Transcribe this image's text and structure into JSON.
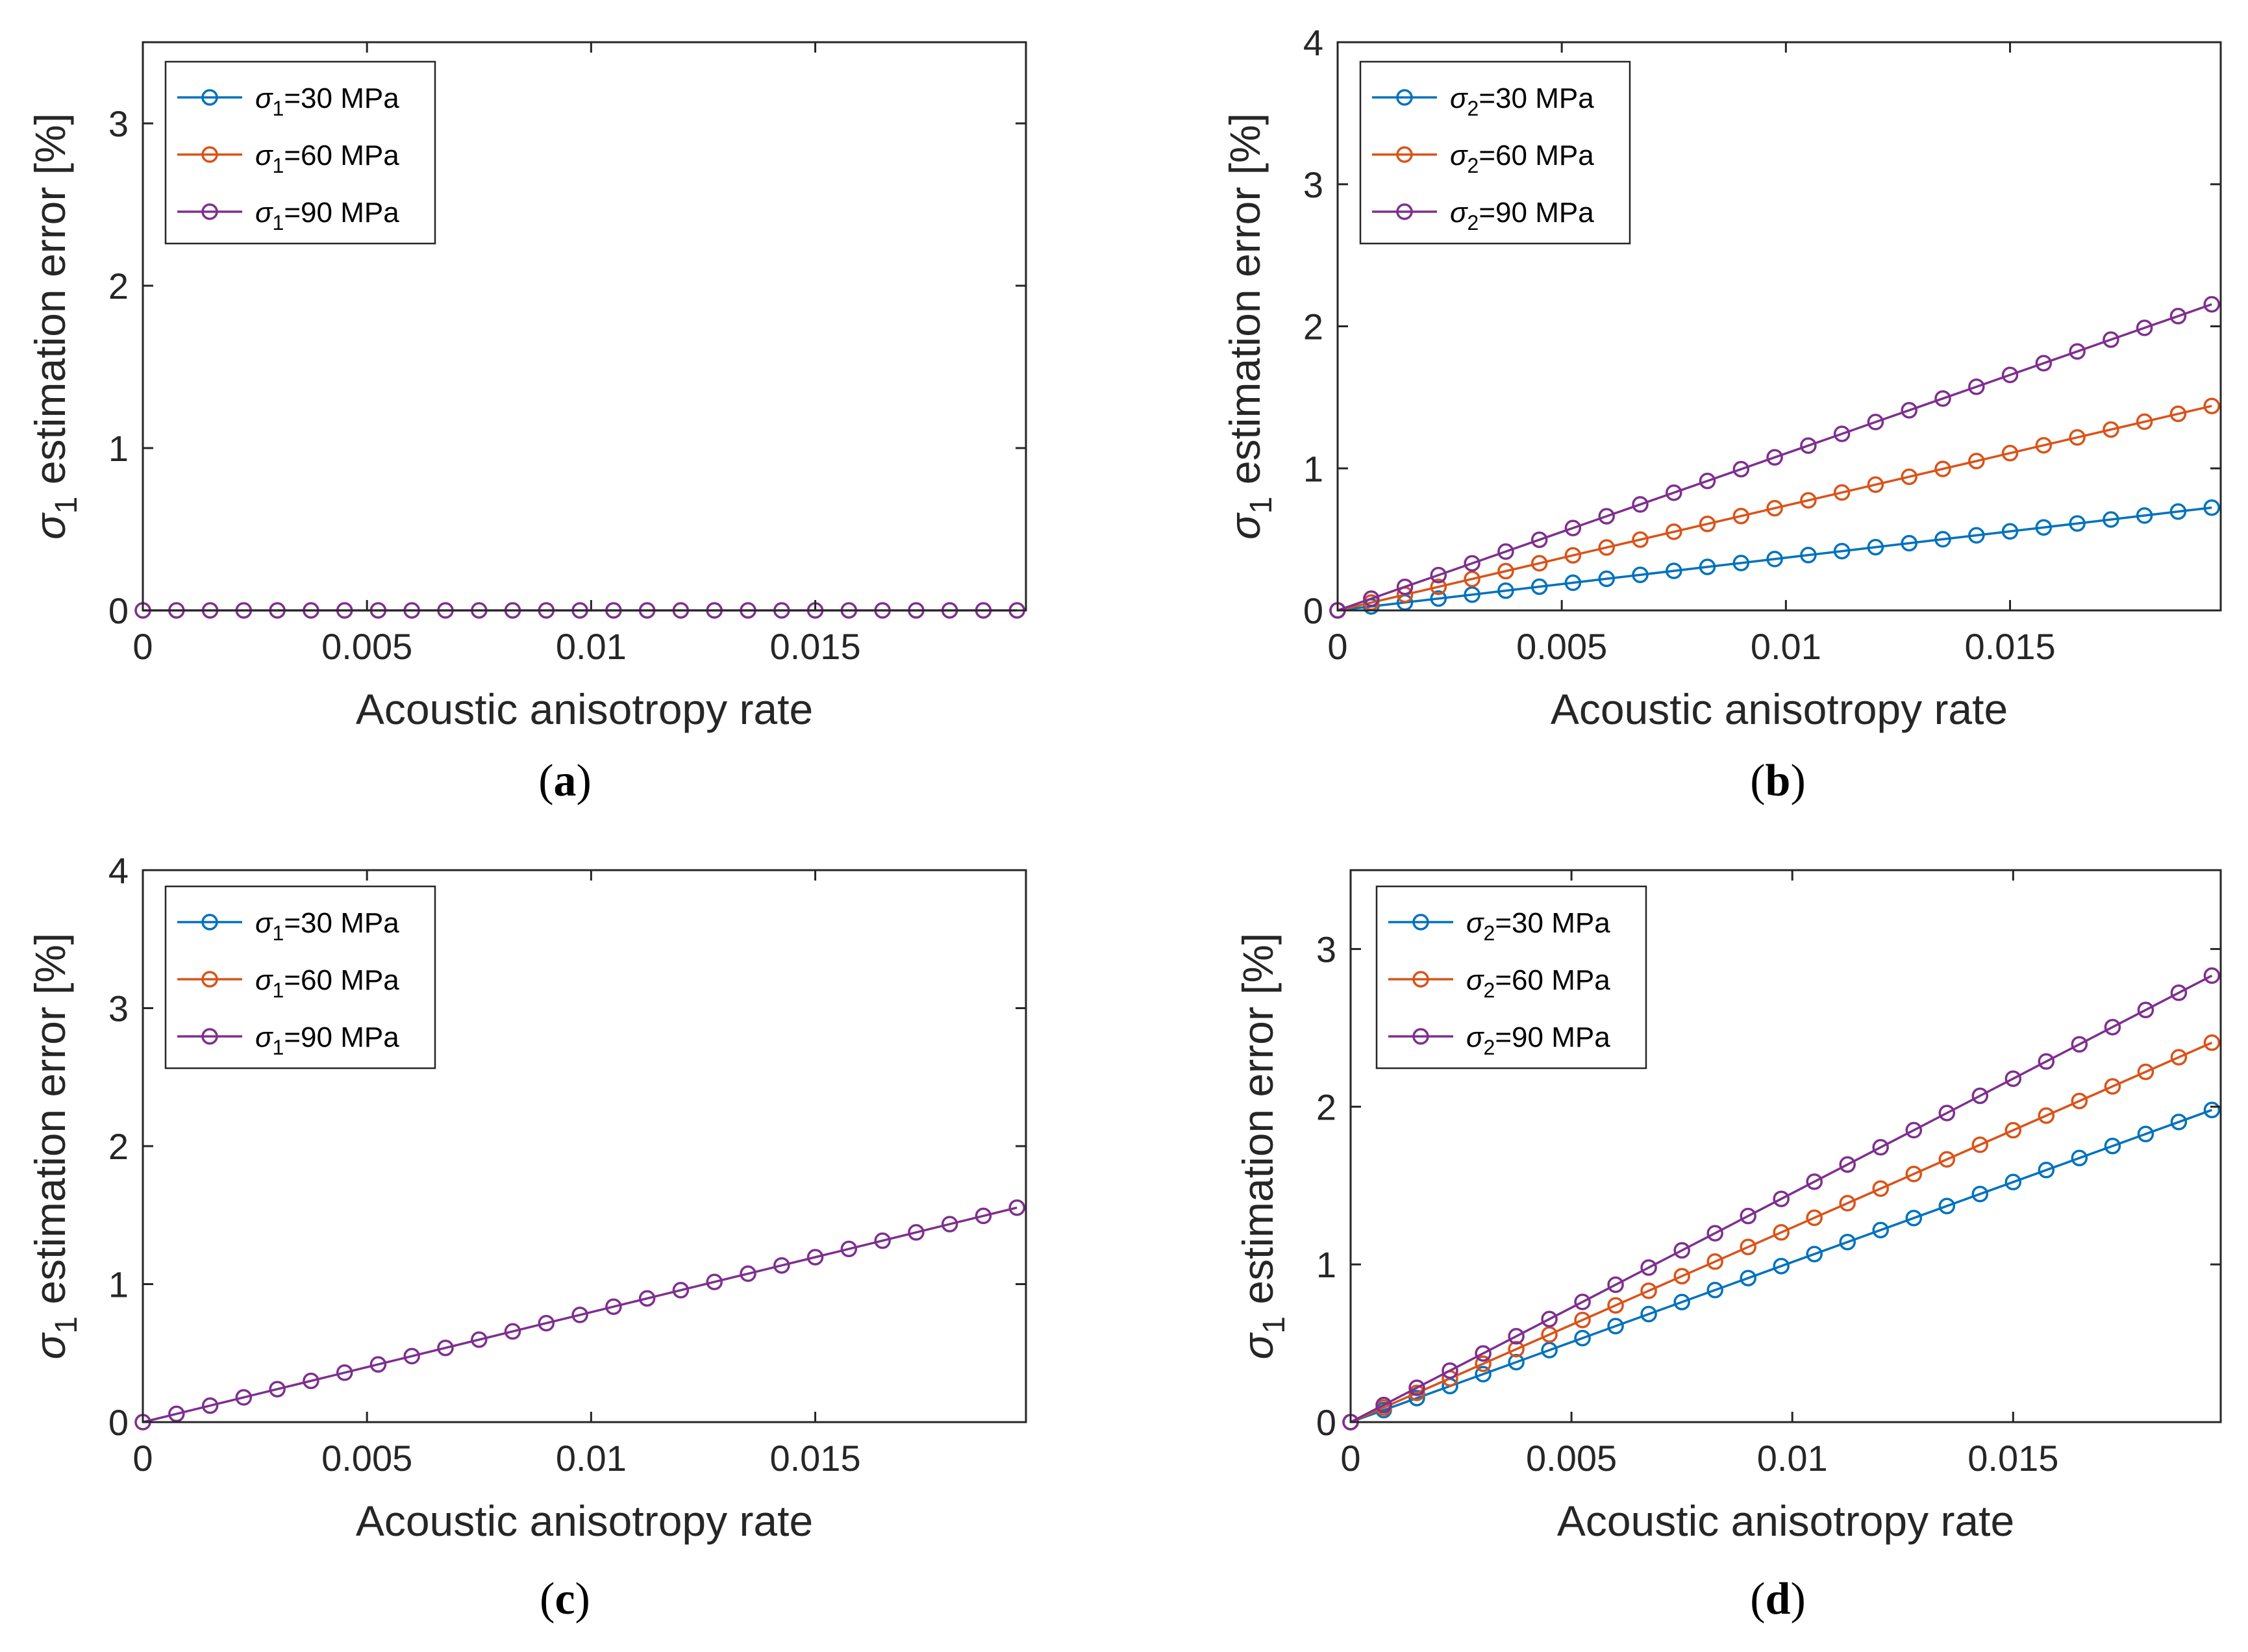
{
  "figure": {
    "panel_labels": [
      "a",
      "b",
      "c",
      "d"
    ]
  },
  "chart_data": [
    {
      "type": "line",
      "panel": "a",
      "xlabel": "Acoustic anisotropy rate",
      "ylabel_symbol": "σ",
      "ylabel_sub": "1",
      "ylabel_text": "estimation error [%]",
      "xlim": [
        0,
        0.0197
      ],
      "ylim": [
        0,
        3.5
      ],
      "xticks": [
        0,
        0.005,
        0.01,
        0.015
      ],
      "xtick_labels": [
        "0",
        "0.005",
        "0.01",
        "0.015"
      ],
      "yticks": [
        0,
        1,
        2,
        3
      ],
      "ytick_labels": [
        "0",
        "1",
        "2",
        "3"
      ],
      "x_start": 0,
      "x_step": 0.00075,
      "n_points": 27,
      "series": [
        {
          "name": "σ1=30 MPa",
          "sym": "σ",
          "sub": "1",
          "label_rest": "=30 MPa",
          "color": "#0072BD",
          "slope": 0,
          "visible": false
        },
        {
          "name": "σ1=60 MPa",
          "sym": "σ",
          "sub": "1",
          "label_rest": "=60 MPa",
          "color": "#D95319",
          "slope": 0,
          "visible": false
        },
        {
          "name": "σ1=90 MPa",
          "sym": "σ",
          "sub": "1",
          "label_rest": "=90 MPa",
          "color": "#7E2F8E",
          "slope": 0,
          "visible": true
        }
      ]
    },
    {
      "type": "line",
      "panel": "b",
      "xlabel": "Acoustic anisotropy rate",
      "ylabel_symbol": "σ",
      "ylabel_sub": "1",
      "ylabel_text": "estimation error [%]",
      "xlim": [
        0,
        0.0197
      ],
      "ylim": [
        0,
        4
      ],
      "xticks": [
        0,
        0.005,
        0.01,
        0.015
      ],
      "xtick_labels": [
        "0",
        "0.005",
        "0.01",
        "0.015"
      ],
      "yticks": [
        0,
        1,
        2,
        3,
        4
      ],
      "ytick_labels": [
        "0",
        "1",
        "2",
        "3",
        "4"
      ],
      "x_start": 0,
      "x_step": 0.00075,
      "n_points": 27,
      "series": [
        {
          "name": "σ2=30 MPa",
          "sym": "σ",
          "sub": "2",
          "label_rest": "=30 MPa",
          "color": "#0072BD",
          "slope": 37.1,
          "visible": true
        },
        {
          "name": "σ2=60 MPa",
          "sym": "σ",
          "sub": "2",
          "label_rest": "=60 MPa",
          "color": "#D95319",
          "slope": 73.8,
          "visible": true
        },
        {
          "name": "σ2=90 MPa",
          "sym": "σ",
          "sub": "2",
          "label_rest": "=90 MPa",
          "color": "#7E2F8E",
          "slope": 110.5,
          "visible": true
        }
      ]
    },
    {
      "type": "line",
      "panel": "c",
      "xlabel": "Acoustic anisotropy rate",
      "ylabel_symbol": "σ",
      "ylabel_sub": "1",
      "ylabel_text": "estimation error [%]",
      "xlim": [
        0,
        0.0197
      ],
      "ylim": [
        0,
        4
      ],
      "xticks": [
        0,
        0.005,
        0.01,
        0.015
      ],
      "xtick_labels": [
        "0",
        "0.005",
        "0.01",
        "0.015"
      ],
      "yticks": [
        0,
        1,
        2,
        3,
        4
      ],
      "ytick_labels": [
        "0",
        "1",
        "2",
        "3",
        "4"
      ],
      "x_start": 0,
      "x_step": 0.00075,
      "n_points": 27,
      "series": [
        {
          "name": "σ1=30 MPa",
          "sym": "σ",
          "sub": "1",
          "label_rest": "=30 MPa",
          "color": "#0072BD",
          "slope": 79.7,
          "visible": false
        },
        {
          "name": "σ1=60 MPa",
          "sym": "σ",
          "sub": "1",
          "label_rest": "=60 MPa",
          "color": "#D95319",
          "slope": 79.7,
          "visible": false
        },
        {
          "name": "σ1=90 MPa",
          "sym": "σ",
          "sub": "1",
          "label_rest": "=90 MPa",
          "color": "#7E2F8E",
          "slope": 79.7,
          "visible": true
        }
      ]
    },
    {
      "type": "line",
      "panel": "d",
      "xlabel": "Acoustic anisotropy rate",
      "ylabel_symbol": "σ",
      "ylabel_sub": "1",
      "ylabel_text": "estimation error [%]",
      "xlim": [
        0,
        0.0197
      ],
      "ylim": [
        0,
        3.5
      ],
      "xticks": [
        0,
        0.005,
        0.01,
        0.015
      ],
      "xtick_labels": [
        "0",
        "0.005",
        "0.01",
        "0.015"
      ],
      "yticks": [
        0,
        1,
        2,
        3
      ],
      "ytick_labels": [
        "0",
        "1",
        "2",
        "3"
      ],
      "x_start": 0,
      "x_step": 0.00075,
      "n_points": 27,
      "series": [
        {
          "name": "σ2=30 MPa",
          "sym": "σ",
          "sub": "2",
          "label_rest": "=30 MPa",
          "color": "#0072BD",
          "slope": 101.5,
          "visible": true
        },
        {
          "name": "σ2=60 MPa",
          "sym": "σ",
          "sub": "2",
          "label_rest": "=60 MPa",
          "color": "#D95319",
          "slope": 123.4,
          "visible": true
        },
        {
          "name": "σ2=90 MPa",
          "sym": "σ",
          "sub": "2",
          "label_rest": "=90 MPa",
          "color": "#7E2F8E",
          "slope": 145.2,
          "visible": true
        }
      ]
    }
  ]
}
